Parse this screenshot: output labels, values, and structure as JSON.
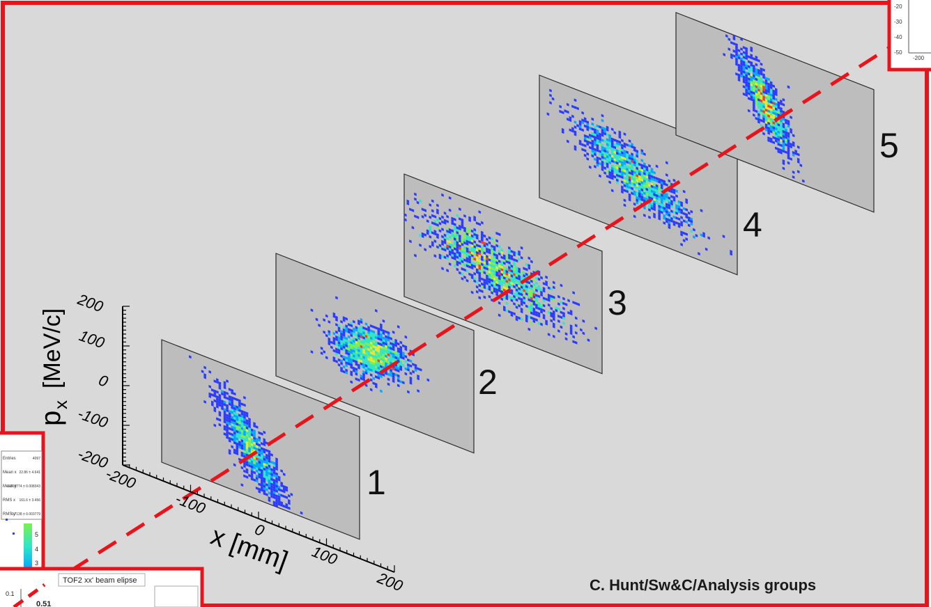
{
  "credit": "C. Hunt/Sw&C/Analysis groups",
  "colors": {
    "outer_border": "#e8141b",
    "background": "#d9d9d9",
    "panel": "#bdbdbd",
    "panel_edge": "#2a2a2a",
    "beam_axis": "#e8141b"
  },
  "inset_bottom": {
    "title": "TOF2 xx' beam elipse",
    "value": "0.51",
    "tick": "0.1"
  },
  "inset_left": {
    "stats": [
      "Entries",
      "Mean x",
      "Mean y",
      "RMS x",
      "RMS y"
    ],
    "stat_values": [
      "4097",
      "22.86 ± 4.641",
      "0.003774 ± 0.008343",
      "161.6 ± 3.456",
      "0.7138 ± 0.003779"
    ],
    "colorbar_ticks": [
      "5",
      "4",
      "3"
    ]
  },
  "inset_top_right": {
    "y_ticks": [
      "-20",
      "-30",
      "-40",
      "-50"
    ],
    "x_tick": "-200"
  },
  "chart_data": {
    "type": "heatmap",
    "title": "",
    "xlabel": "x  [mm]",
    "ylabel": "p",
    "ylabel_sub": "x",
    "ylabel_unit": "[MeV/c]",
    "x_ticks": [
      "-200",
      "-100",
      "0",
      "100",
      "200"
    ],
    "y_ticks": [
      "200",
      "100",
      "0",
      "-100",
      "-200"
    ],
    "xlim": [
      -200,
      200
    ],
    "ylim": [
      -200,
      200
    ],
    "colormap": [
      "#6a00d4",
      "#2a3bff",
      "#00a8ff",
      "#2ee6c8",
      "#7cf050",
      "#e8e830",
      "#ff3a1a"
    ],
    "stations": [
      {
        "label": "1",
        "mean_x": -20,
        "mean_px": -40,
        "sigma_x": 32,
        "sigma_px": 70,
        "correlation": -0.82
      },
      {
        "label": "2",
        "mean_x": -10,
        "mean_px": 0,
        "sigma_x": 35,
        "sigma_px": 40,
        "correlation": 0.15
      },
      {
        "label": "3",
        "mean_x": -20,
        "mean_px": 5,
        "sigma_x": 70,
        "sigma_px": 55,
        "correlation": -0.55
      },
      {
        "label": "4",
        "mean_x": -10,
        "mean_px": -5,
        "sigma_x": 55,
        "sigma_px": 55,
        "correlation": -0.72
      },
      {
        "label": "5",
        "mean_x": -20,
        "mean_px": 20,
        "sigma_x": 25,
        "sigma_px": 65,
        "correlation": -0.78
      }
    ]
  }
}
